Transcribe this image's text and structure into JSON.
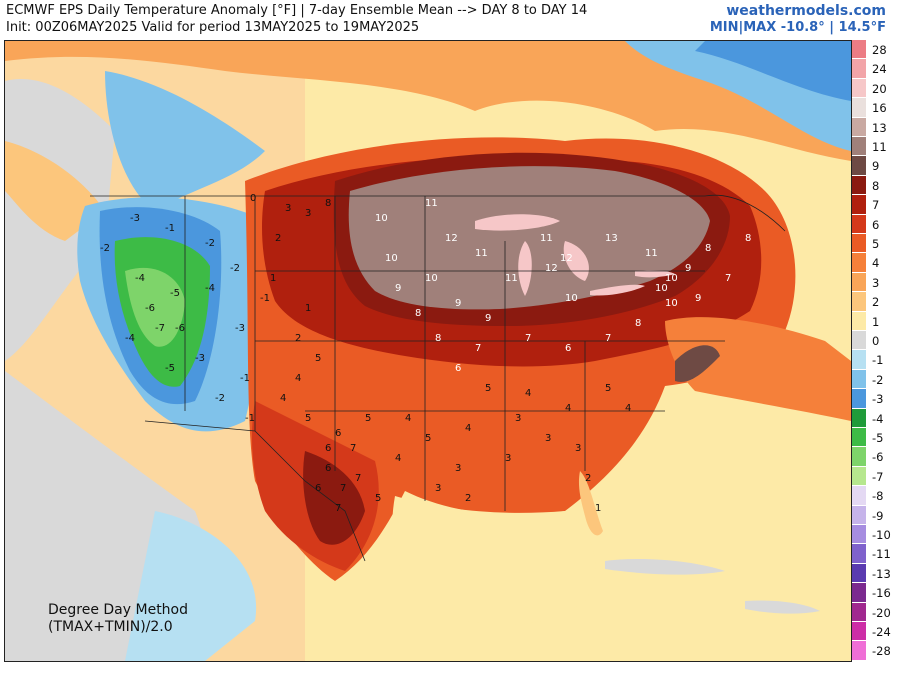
{
  "header": {
    "title": "ECMWF EPS Daily Temperature Anomaly [°F] | 7-day Ensemble Mean --> DAY 8 to DAY 14",
    "subtitle": "Init: 00Z06MAY2025 Valid for period 13MAY2025 to 19MAY2025",
    "site": "weathermodels.com",
    "minmax": "MIN|MAX -10.8° | 14.5°F"
  },
  "method": {
    "line1": "Degree Day Method",
    "line2": "(TMAX+TMIN)/2.0"
  },
  "legend": {
    "items": [
      {
        "label": "28",
        "color": "#ec7c84"
      },
      {
        "label": "24",
        "color": "#f2a4a8"
      },
      {
        "label": "20",
        "color": "#f6c7c8"
      },
      {
        "label": "16",
        "color": "#eae0dd"
      },
      {
        "label": "13",
        "color": "#c9a9a2"
      },
      {
        "label": "11",
        "color": "#a0807a"
      },
      {
        "label": "9",
        "color": "#6e4a44"
      },
      {
        "label": "8",
        "color": "#8b1a10"
      },
      {
        "label": "7",
        "color": "#b0200e"
      },
      {
        "label": "6",
        "color": "#d4391a"
      },
      {
        "label": "5",
        "color": "#ea5b25"
      },
      {
        "label": "4",
        "color": "#f5803a"
      },
      {
        "label": "3",
        "color": "#f9a558"
      },
      {
        "label": "2",
        "color": "#fcc67c"
      },
      {
        "label": "1",
        "color": "#fdeaa7"
      },
      {
        "label": "0",
        "color": "#d9d9d9"
      },
      {
        "label": "-1",
        "color": "#b6e0f2"
      },
      {
        "label": "-2",
        "color": "#80c2ea"
      },
      {
        "label": "-3",
        "color": "#4b97dd"
      },
      {
        "label": "-4",
        "color": "#1f9b3a"
      },
      {
        "label": "-5",
        "color": "#3dbb46"
      },
      {
        "label": "-6",
        "color": "#7ed46a"
      },
      {
        "label": "-7",
        "color": "#b6e78e"
      },
      {
        "label": "-8",
        "color": "#e4d9f3"
      },
      {
        "label": "-9",
        "color": "#c6b4ea"
      },
      {
        "label": "-10",
        "color": "#a68de0"
      },
      {
        "label": "-11",
        "color": "#7f62cc"
      },
      {
        "label": "-13",
        "color": "#5a3bb0"
      },
      {
        "label": "-16",
        "color": "#7b2a8f"
      },
      {
        "label": "-20",
        "color": "#a0288f"
      },
      {
        "label": "-24",
        "color": "#cd2ea6"
      },
      {
        "label": "-28",
        "color": "#ef6fd6"
      }
    ]
  },
  "map_labels": {
    "west": [
      "-3",
      "-1",
      "-2",
      "-2",
      "-4",
      "-5",
      "-6",
      "-7",
      "-6",
      "-4",
      "-3",
      "-5",
      "-4",
      "-2",
      "-3",
      "-1",
      "-2",
      "-1"
    ],
    "plains": [
      "3",
      "2",
      "1",
      "1",
      "2",
      "3",
      "0",
      "-1",
      "5",
      "4",
      "6",
      "7",
      "8",
      "5",
      "6",
      "7",
      "4"
    ],
    "central": [
      "10",
      "11",
      "12",
      "11",
      "10",
      "9",
      "11",
      "12",
      "10",
      "9",
      "8",
      "10",
      "11",
      "12",
      "13",
      "11",
      "10",
      "9"
    ],
    "east": [
      "8",
      "7",
      "9",
      "10",
      "8",
      "7",
      "6",
      "7",
      "8",
      "9",
      "10",
      "7",
      "8",
      "6"
    ],
    "southeast": [
      "5",
      "4",
      "3",
      "4",
      "5",
      "3",
      "3",
      "4",
      "2",
      "3",
      "1",
      "4",
      "3",
      "5"
    ],
    "south": [
      "6",
      "5",
      "4",
      "7",
      "6",
      "7",
      "5",
      "4",
      "3",
      "2"
    ]
  }
}
